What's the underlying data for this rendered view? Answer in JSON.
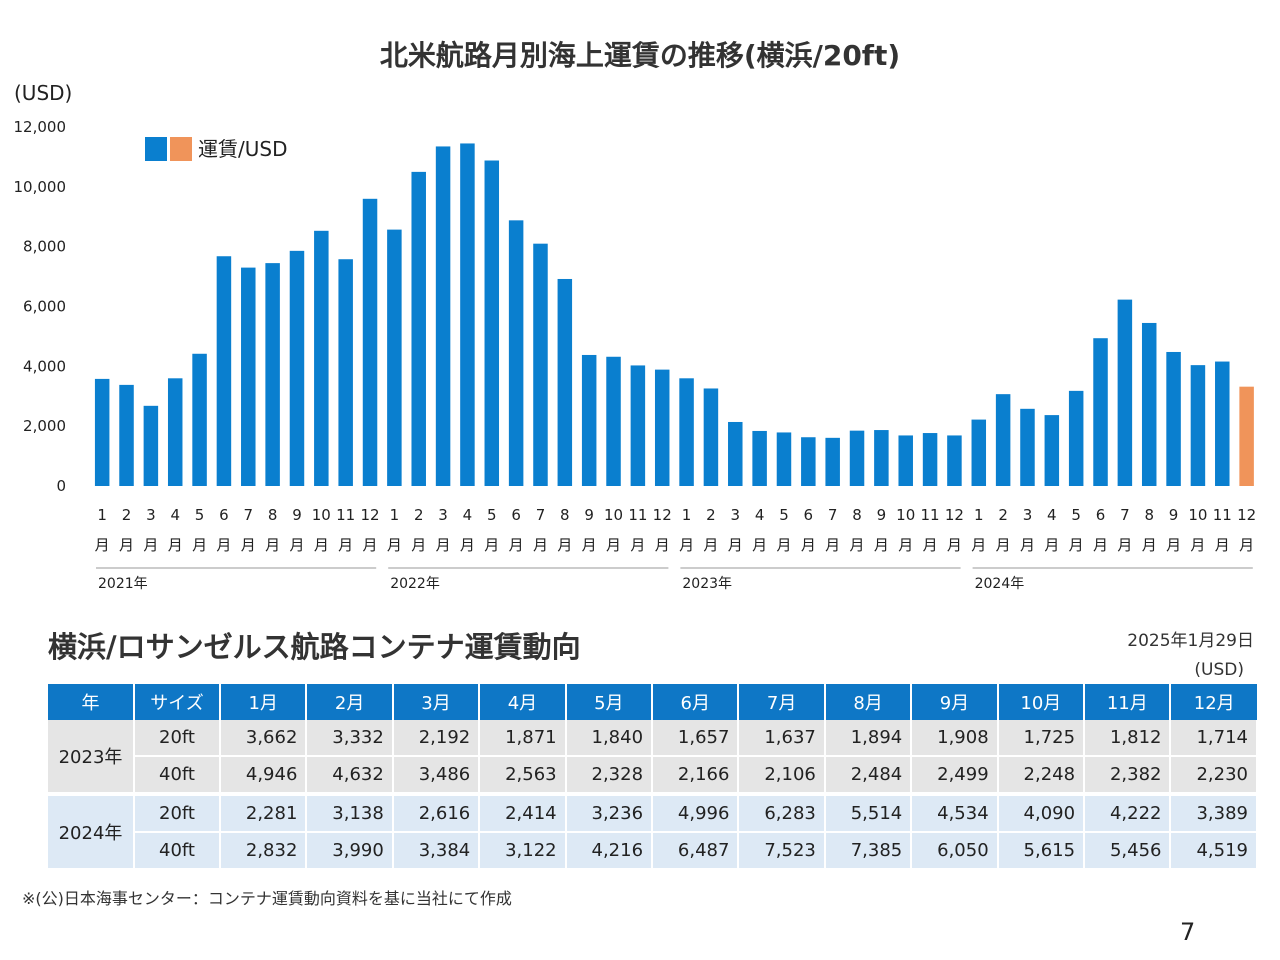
{
  "chart_title": "北米航路月別海上運賃の推移(横浜/20ft)",
  "chart_data": {
    "type": "bar",
    "title": "北米航路月別海上運賃の推移(横浜/20ft)",
    "ylabel": "(USD)",
    "ylim": [
      0,
      12000
    ],
    "yticks": [
      "0",
      "2,000",
      "4,000",
      "6,000",
      "8,000",
      "10,000",
      "12,000"
    ],
    "legend": "運賃/USD",
    "colors": {
      "bar": "#0a7fcf",
      "highlight": "#f0945a",
      "axis": "#999999",
      "text": "#222222"
    },
    "month_line": "月",
    "month_numbers": [
      "1",
      "2",
      "3",
      "4",
      "5",
      "6",
      "7",
      "8",
      "9",
      "10",
      "11",
      "12"
    ],
    "years": [
      "2021年",
      "2022年",
      "2023年",
      "2024年"
    ],
    "values": [
      3580,
      3380,
      2680,
      3600,
      4420,
      7680,
      7300,
      7450,
      7860,
      8530,
      7580,
      9600,
      8570,
      10500,
      11350,
      11450,
      10880,
      8880,
      8100,
      6920,
      4380,
      4320,
      4030,
      3890,
      3600,
      3260,
      2140,
      1840,
      1790,
      1630,
      1610,
      1850,
      1870,
      1690,
      1770,
      1690,
      2220,
      3070,
      2580,
      2370,
      3180,
      4940,
      6230,
      5450,
      4480,
      4040,
      4160,
      3320
    ],
    "highlight_index": 47
  },
  "table": {
    "title": "横浜/ロサンゼルス航路コンテナ運賃動向",
    "date": "2025年1月29日",
    "unit": "(USD)",
    "headers": [
      "年",
      "サイズ",
      "1月",
      "2月",
      "3月",
      "4月",
      "5月",
      "6月",
      "7月",
      "8月",
      "9月",
      "10月",
      "11月",
      "12月"
    ],
    "groups": [
      {
        "year": "2023年",
        "rows": [
          {
            "size": "20ft",
            "values": [
              "3,662",
              "3,332",
              "2,192",
              "1,871",
              "1,840",
              "1,657",
              "1,637",
              "1,894",
              "1,908",
              "1,725",
              "1,812",
              "1,714"
            ]
          },
          {
            "size": "40ft",
            "values": [
              "4,946",
              "4,632",
              "3,486",
              "2,563",
              "2,328",
              "2,166",
              "2,106",
              "2,484",
              "2,499",
              "2,248",
              "2,382",
              "2,230"
            ]
          }
        ]
      },
      {
        "year": "2024年",
        "rows": [
          {
            "size": "20ft",
            "values": [
              "2,281",
              "3,138",
              "2,616",
              "2,414",
              "3,236",
              "4,996",
              "6,283",
              "5,514",
              "4,534",
              "4,090",
              "4,222",
              "3,389"
            ]
          },
          {
            "size": "40ft",
            "values": [
              "2,832",
              "3,990",
              "3,384",
              "3,122",
              "4,216",
              "6,487",
              "7,523",
              "7,385",
              "6,050",
              "5,615",
              "5,456",
              "4,519"
            ]
          }
        ]
      }
    ]
  },
  "footnote": "※(公)日本海事センター：コンテナ運賃動向資料を基に当社にて作成",
  "page_number": "7"
}
